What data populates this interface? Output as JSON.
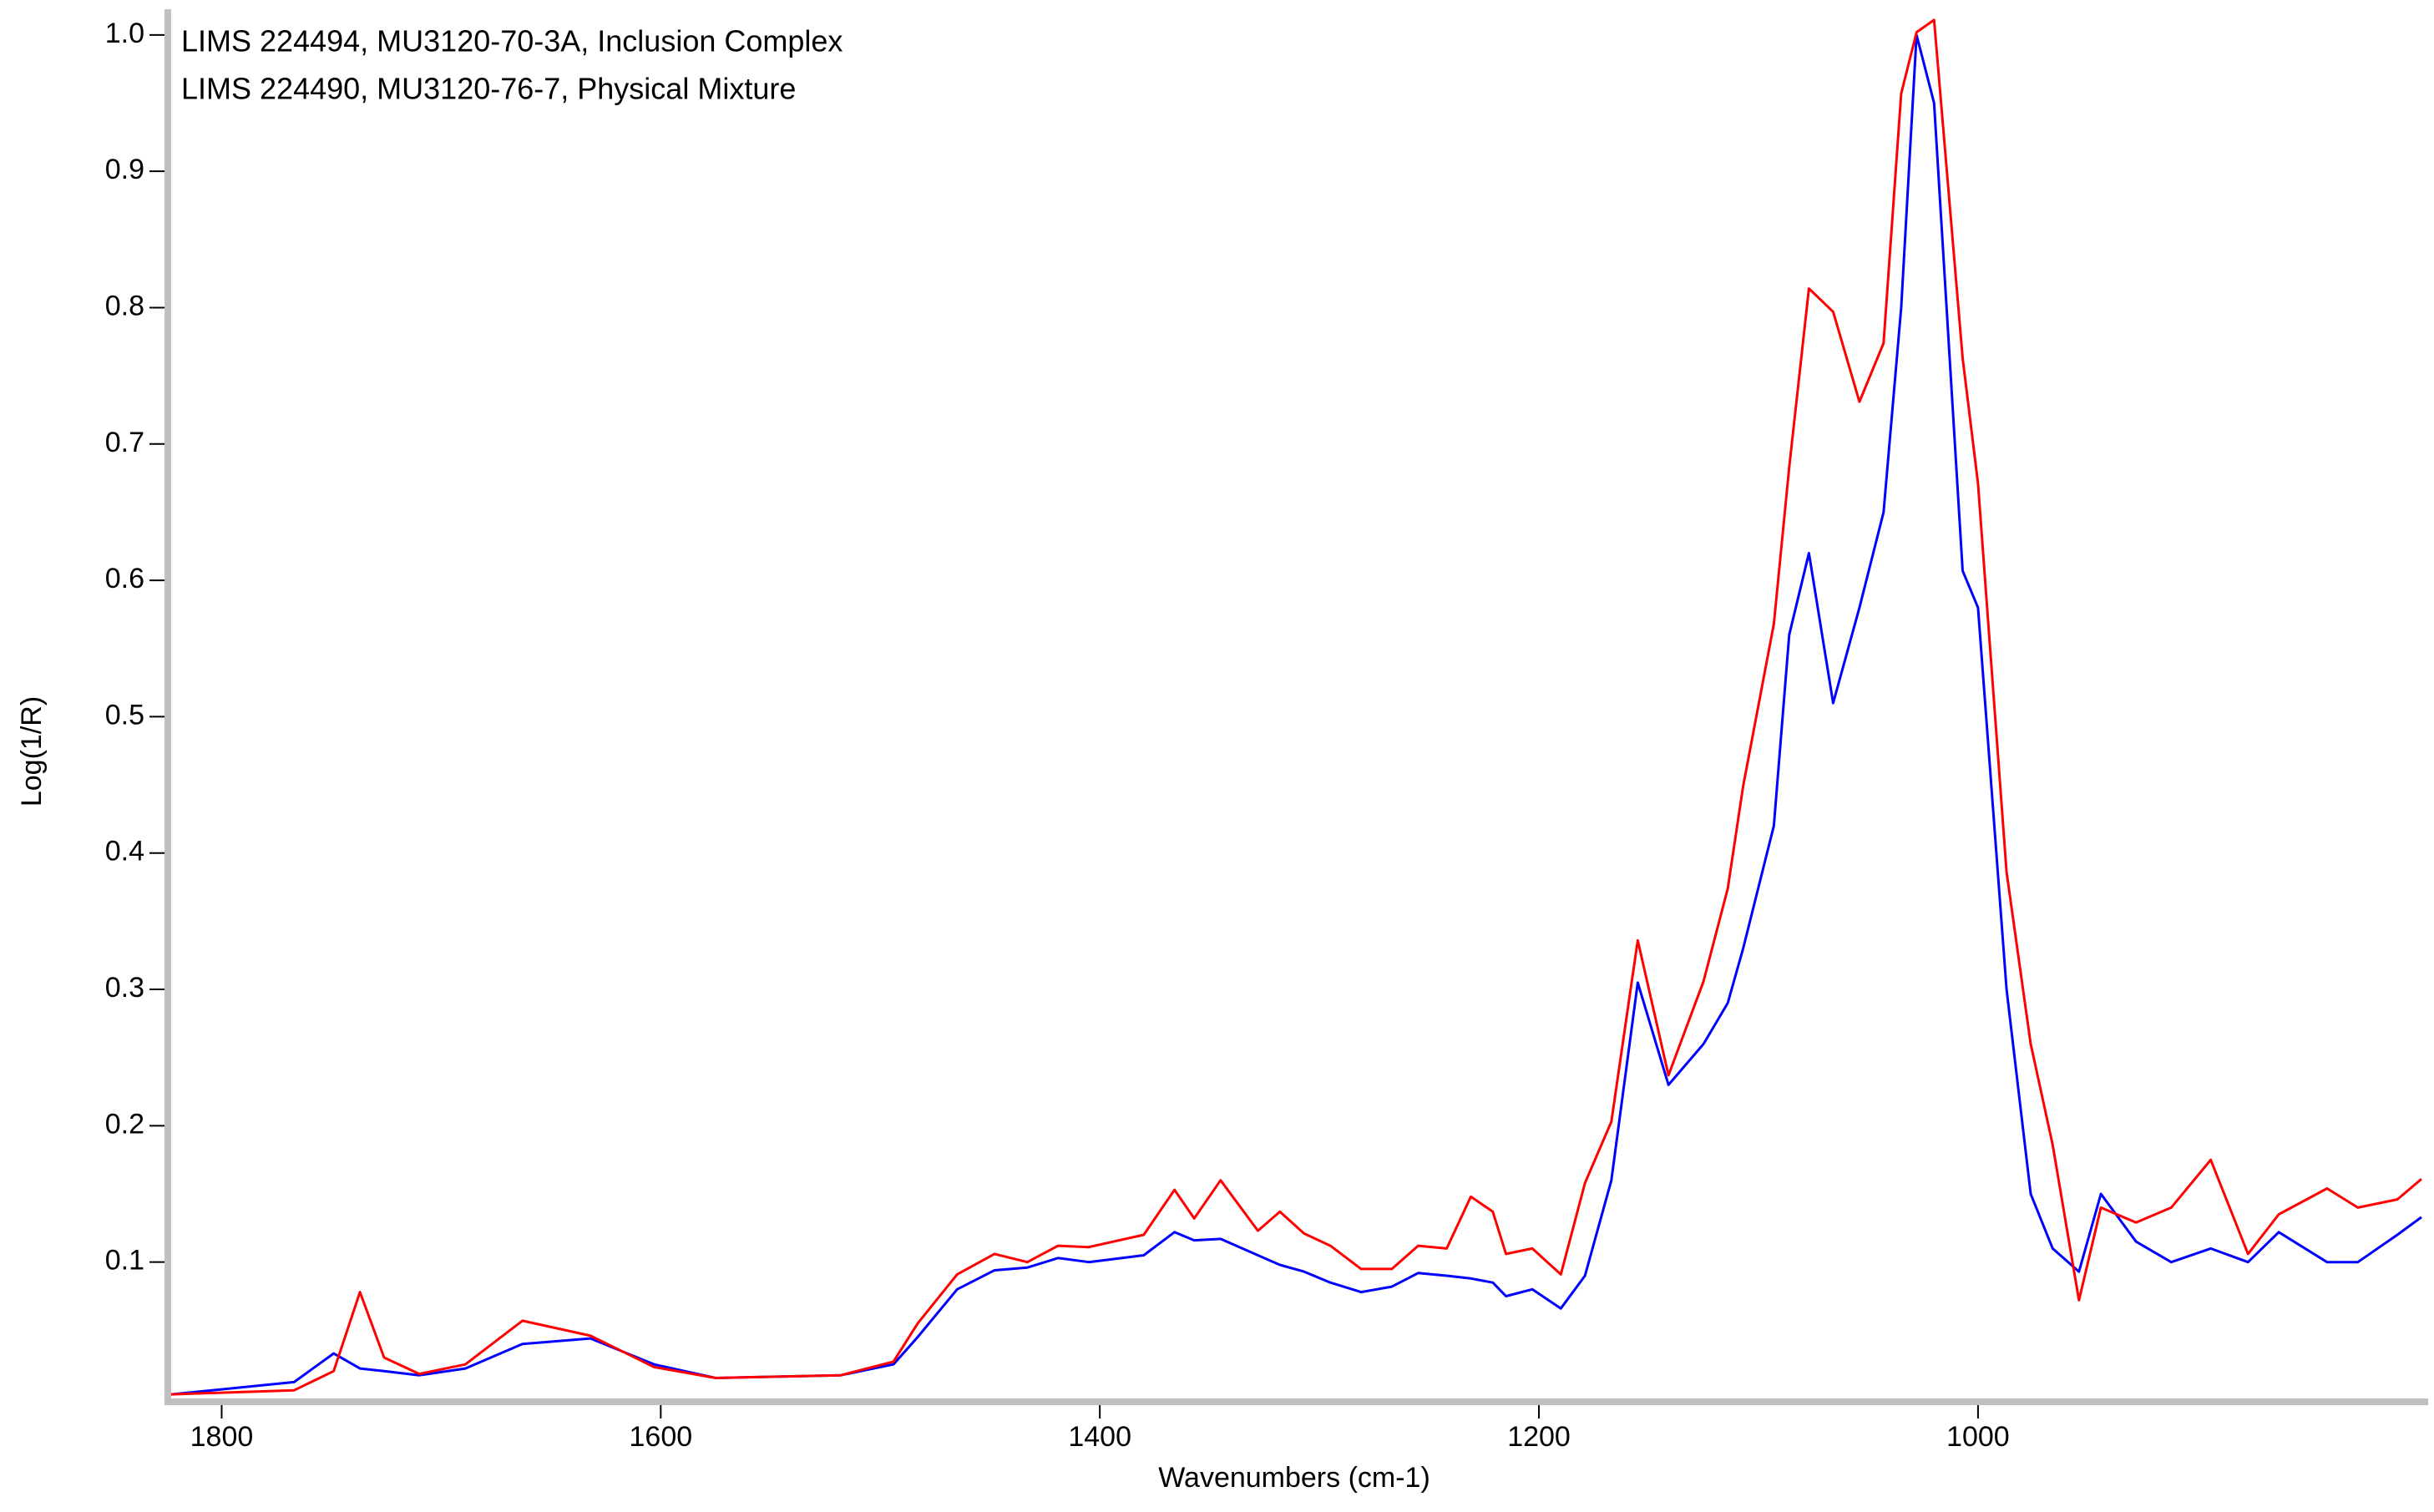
{
  "chart_data": {
    "type": "line",
    "ylabel": "Log(1/R)",
    "xlabel": "Wavenumbers (cm-1)",
    "xlim": [
      1823,
      798
    ],
    "ylim": [
      0,
      1.014
    ],
    "xticks": [
      1800,
      1600,
      1400,
      1200,
      1000
    ],
    "yticks": [
      0.1,
      0.2,
      0.3,
      0.4,
      0.5,
      0.6,
      0.7,
      0.8,
      0.9,
      {
        "value": 1,
        "label": "1.0"
      }
    ],
    "x": [
      1823,
      1767,
      1749,
      1737,
      1726,
      1710,
      1689,
      1663,
      1632,
      1603,
      1575,
      1518,
      1494,
      1483,
      1465,
      1448,
      1433,
      1419,
      1405,
      1380,
      1366,
      1357,
      1345,
      1328,
      1318,
      1307,
      1295,
      1281,
      1267,
      1255,
      1242,
      1231,
      1221,
      1215,
      1203,
      1190,
      1179,
      1167,
      1155,
      1141,
      1125,
      1114,
      1107,
      1093,
      1086,
      1077,
      1066,
      1054,
      1043,
      1035,
      1028,
      1020,
      1007,
      1000,
      987,
      976,
      966,
      954,
      944,
      928,
      912,
      894,
      877,
      863,
      841,
      827,
      809,
      798
    ],
    "series": [
      {
        "name": "LIMS 224494, MU3120-70-3A, Inclusion Complex",
        "color": "#0000ff",
        "values": [
          0.003,
          0.012,
          0.033,
          0.022,
          0.02,
          0.017,
          0.022,
          0.04,
          0.044,
          0.025,
          0.015,
          0.017,
          0.025,
          0.045,
          0.08,
          0.094,
          0.096,
          0.103,
          0.1,
          0.105,
          0.122,
          0.116,
          0.117,
          0.105,
          0.098,
          0.093,
          0.085,
          0.078,
          0.082,
          0.092,
          0.09,
          0.088,
          0.085,
          0.075,
          0.08,
          0.066,
          0.09,
          0.16,
          0.305,
          0.23,
          0.26,
          0.29,
          0.33,
          0.42,
          0.56,
          0.62,
          0.51,
          0.58,
          0.65,
          0.8,
          1.0,
          0.95,
          0.607,
          0.58,
          0.3,
          0.15,
          0.11,
          0.093,
          0.15,
          0.115,
          0.1,
          0.11,
          0.1,
          0.122,
          0.1,
          0.1,
          0.12,
          0.133
        ]
      },
      {
        "name": "LIMS 224490, MU3120-76-7, Physical Mixture",
        "color": "#ff0000",
        "values": [
          0.003,
          0.006,
          0.02,
          0.078,
          0.03,
          0.018,
          0.025,
          0.057,
          0.046,
          0.023,
          0.015,
          0.017,
          0.027,
          0.055,
          0.091,
          0.106,
          0.1,
          0.112,
          0.111,
          0.12,
          0.153,
          0.132,
          0.16,
          0.123,
          0.137,
          0.121,
          0.112,
          0.095,
          0.095,
          0.112,
          0.11,
          0.148,
          0.137,
          0.106,
          0.11,
          0.091,
          0.158,
          0.203,
          0.336,
          0.237,
          0.306,
          0.374,
          0.449,
          0.568,
          0.683,
          0.814,
          0.797,
          0.731,
          0.774,
          0.957,
          1.002,
          1.011,
          0.763,
          0.671,
          0.386,
          0.26,
          0.186,
          0.072,
          0.14,
          0.129,
          0.14,
          0.175,
          0.106,
          0.135,
          0.154,
          0.14,
          0.146,
          0.161
        ]
      }
    ]
  }
}
